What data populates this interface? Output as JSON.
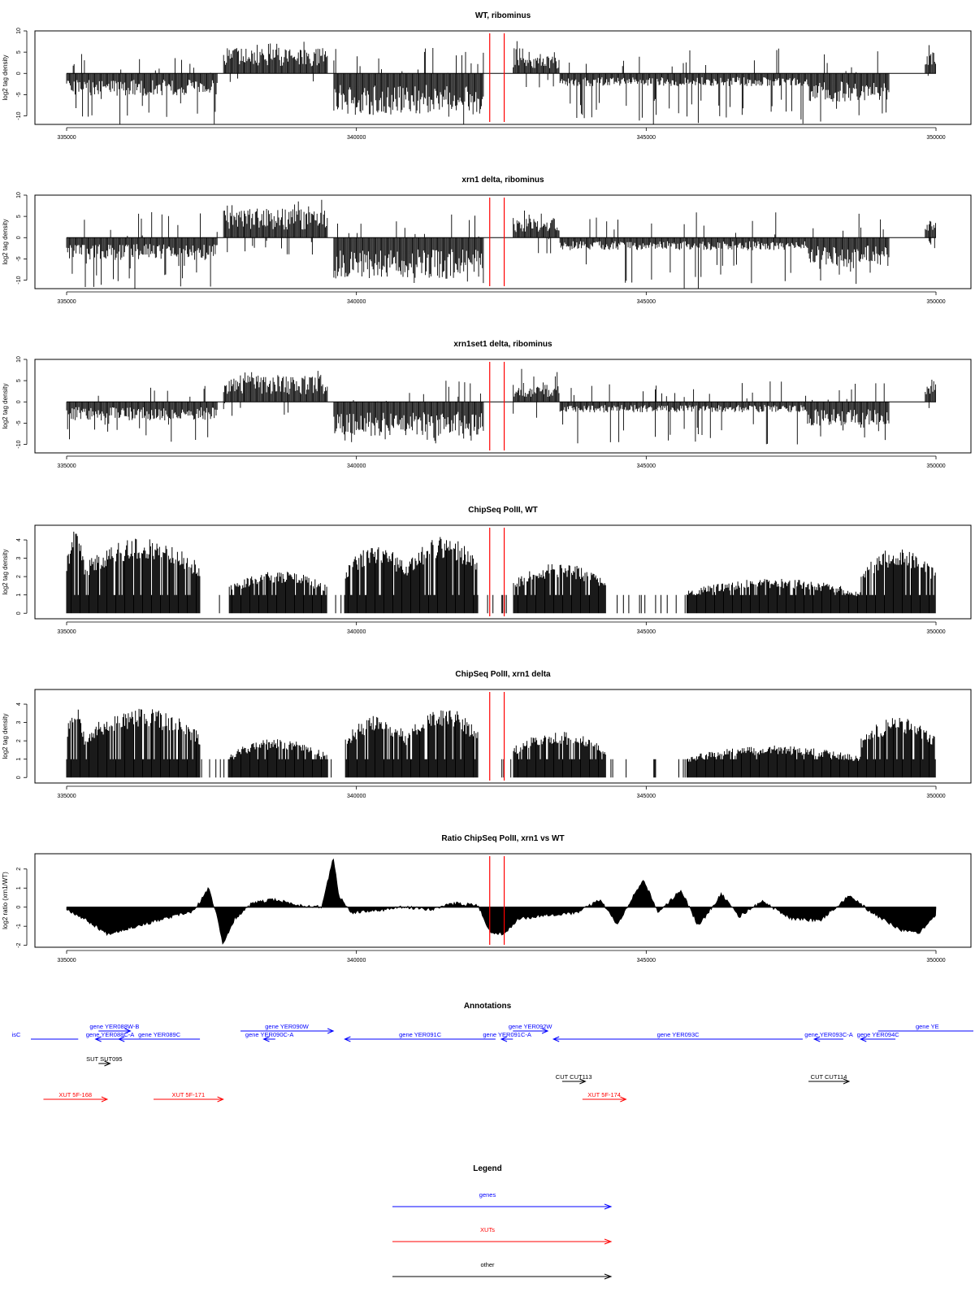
{
  "panels": [
    {
      "title": "WT, ribominus",
      "ylabel": "log2 tag density",
      "ylim": [
        -12,
        10
      ],
      "yticks": [
        10,
        5,
        0,
        -5,
        -10
      ],
      "kind": "bipolar",
      "pos_max": 8,
      "neg_max": 12,
      "seed": 11
    },
    {
      "title": "xrn1 delta, ribominus",
      "ylabel": "log2 tag density",
      "ylim": [
        -12,
        10
      ],
      "yticks": [
        10,
        5,
        0,
        -5,
        -10
      ],
      "kind": "bipolar",
      "pos_max": 9,
      "neg_max": 12,
      "seed": 23
    },
    {
      "title": "xrn1set1 delta, ribominus",
      "ylabel": "log2 tag density",
      "ylim": [
        -12,
        10
      ],
      "yticks": [
        10,
        5,
        0,
        -5,
        -10
      ],
      "kind": "bipolar",
      "pos_max": 8.5,
      "neg_max": 10,
      "seed": 37
    },
    {
      "title": "ChipSeq PolII, WT",
      "ylabel": "log2 tag density",
      "ylim": [
        -0.3,
        4.8
      ],
      "yticks": [
        4,
        3,
        2,
        1,
        0
      ],
      "kind": "positive",
      "seed": 41
    },
    {
      "title": "ChipSeq PolII, xrn1 delta",
      "ylabel": "log2 tag density",
      "ylim": [
        -0.3,
        4.8
      ],
      "yticks": [
        4,
        3,
        2,
        1,
        0
      ],
      "kind": "positive",
      "seed": 53
    },
    {
      "title": "Ratio ChipSeq PolII, xrn1 vs WT",
      "ylabel": "log2 ratio (xrn1/WT)",
      "ylim": [
        -2.1,
        2.8
      ],
      "yticks": [
        2,
        1,
        0,
        -1,
        -2
      ],
      "kind": "ratio",
      "seed": 67
    }
  ],
  "chart_data": {
    "type": "area",
    "x_range": [
      335000,
      350000
    ],
    "xticks": [
      "335000",
      "340000",
      "345000",
      "350000"
    ],
    "xtick_values": [
      335000,
      340000,
      345000,
      350000
    ],
    "marker_lines": [
      342300,
      342550
    ],
    "marker_color": "#ff0000",
    "bar_color": "#000000",
    "bipolar_regions": [
      {
        "start": 335000,
        "end": 337600,
        "sign": -1,
        "level": 0.35
      },
      {
        "start": 337700,
        "end": 339500,
        "sign": 1,
        "level": 0.6
      },
      {
        "start": 339600,
        "end": 342200,
        "sign": -1,
        "level": 0.65
      },
      {
        "start": 342700,
        "end": 343500,
        "sign": 1,
        "level": 0.4
      },
      {
        "start": 343500,
        "end": 347800,
        "sign": -1,
        "level": 0.2
      },
      {
        "start": 347800,
        "end": 349200,
        "sign": -1,
        "level": 0.45
      },
      {
        "start": 349800,
        "end": 350000,
        "sign": 1,
        "level": 0.5
      }
    ],
    "polii_regions": [
      {
        "start": 335000,
        "end": 335300,
        "level": 4.3
      },
      {
        "start": 335300,
        "end": 337300,
        "level": 3.9
      },
      {
        "start": 337800,
        "end": 339500,
        "level": 2.2
      },
      {
        "start": 339800,
        "end": 340900,
        "level": 3.5
      },
      {
        "start": 340900,
        "end": 342100,
        "level": 4.0
      },
      {
        "start": 342700,
        "end": 344300,
        "level": 2.6
      },
      {
        "start": 345700,
        "end": 348700,
        "level": 1.8
      },
      {
        "start": 348700,
        "end": 350000,
        "level": 3.4
      }
    ],
    "ratio_points": [
      [
        335000,
        -0.1
      ],
      [
        335300,
        -0.6
      ],
      [
        335700,
        -1.4
      ],
      [
        336200,
        -1.0
      ],
      [
        336700,
        -0.6
      ],
      [
        337200,
        -0.2
      ],
      [
        337450,
        1.0
      ],
      [
        337600,
        -0.5
      ],
      [
        337700,
        -2.0
      ],
      [
        337900,
        -0.6
      ],
      [
        338200,
        0.2
      ],
      [
        338600,
        0.4
      ],
      [
        339000,
        0.1
      ],
      [
        339400,
        0.0
      ],
      [
        339600,
        2.6
      ],
      [
        339700,
        0.6
      ],
      [
        339900,
        -0.3
      ],
      [
        340300,
        -0.2
      ],
      [
        340800,
        0.0
      ],
      [
        341300,
        -0.1
      ],
      [
        341700,
        0.2
      ],
      [
        342100,
        0.1
      ],
      [
        342300,
        -1.3
      ],
      [
        342550,
        -1.4
      ],
      [
        342800,
        -0.6
      ],
      [
        343300,
        -0.4
      ],
      [
        343800,
        -0.3
      ],
      [
        344200,
        0.4
      ],
      [
        344500,
        -0.9
      ],
      [
        344950,
        1.5
      ],
      [
        345200,
        -0.3
      ],
      [
        345600,
        0.9
      ],
      [
        345900,
        -1.0
      ],
      [
        346300,
        0.7
      ],
      [
        346600,
        -0.5
      ],
      [
        347000,
        0.3
      ],
      [
        347500,
        -0.6
      ],
      [
        348000,
        -0.7
      ],
      [
        348500,
        0.6
      ],
      [
        348900,
        -0.3
      ],
      [
        349400,
        -1.2
      ],
      [
        349700,
        -1.4
      ],
      [
        350000,
        -0.4
      ]
    ]
  },
  "annotations": {
    "title": "Annotations",
    "items": [
      {
        "label": "gene YER088W-B",
        "start": 335550,
        "end": 336100,
        "strand": "+",
        "type": "gene",
        "row": 0
      },
      {
        "label": "gene YER090W",
        "start": 338000,
        "end": 339600,
        "strand": "+",
        "type": "gene",
        "row": 0
      },
      {
        "label": "gene YER092W",
        "start": 342700,
        "end": 343300,
        "strand": "+",
        "type": "gene",
        "row": 0
      },
      {
        "label": "gene YE",
        "start": 349000,
        "end": 350700,
        "strand": "+",
        "type": "gene",
        "row": 0
      },
      {
        "label": "isC",
        "start": 333000,
        "end": 335200,
        "strand": "-",
        "type": "gene",
        "row": 1
      },
      {
        "label": "gene YER088C-A",
        "start": 335500,
        "end": 336000,
        "strand": "-",
        "type": "gene",
        "row": 1
      },
      {
        "label": "gene YER089C",
        "start": 335900,
        "end": 337300,
        "strand": "-",
        "type": "gene",
        "row": 1
      },
      {
        "label": "gene YER090C-A",
        "start": 338400,
        "end": 338600,
        "strand": "-",
        "type": "gene",
        "row": 1
      },
      {
        "label": "gene YER091C",
        "start": 339800,
        "end": 342400,
        "strand": "-",
        "type": "gene",
        "row": 1
      },
      {
        "label": "gene YER091C-A",
        "start": 342500,
        "end": 342700,
        "strand": "-",
        "type": "gene",
        "row": 1
      },
      {
        "label": "gene YER093C",
        "start": 343400,
        "end": 347700,
        "strand": "-",
        "type": "gene",
        "row": 1
      },
      {
        "label": "gene YER093C-A",
        "start": 347900,
        "end": 348400,
        "strand": "-",
        "type": "gene",
        "row": 1
      },
      {
        "label": "gene YER094C",
        "start": 348700,
        "end": 349300,
        "strand": "-",
        "type": "gene",
        "row": 1
      },
      {
        "label": "SUT SUT095",
        "start": 335550,
        "end": 335750,
        "strand": "+",
        "type": "other",
        "row": 2
      },
      {
        "label": "CUT CUT113",
        "start": 343550,
        "end": 343950,
        "strand": "+",
        "type": "other",
        "row": 3
      },
      {
        "label": "CUT CUT114",
        "start": 347800,
        "end": 348500,
        "strand": "+",
        "type": "other",
        "row": 3
      },
      {
        "label": "XUT 5F-168",
        "start": 334600,
        "end": 335700,
        "strand": "+",
        "type": "xut",
        "row": 4
      },
      {
        "label": "XUT 5F-171",
        "start": 336500,
        "end": 337700,
        "strand": "+",
        "type": "xut",
        "row": 4
      },
      {
        "label": "XUT 5F-174",
        "start": 343900,
        "end": 344650,
        "strand": "+",
        "type": "xut",
        "row": 4
      }
    ]
  },
  "legend": {
    "title": "Legend",
    "entries": [
      {
        "label": "genes",
        "color": "#0000ff"
      },
      {
        "label": "XUTs",
        "color": "#ff0000"
      },
      {
        "label": "other",
        "color": "#000000"
      }
    ]
  },
  "colors": {
    "gene": "#0000ff",
    "xut": "#ff0000",
    "other": "#000000"
  }
}
